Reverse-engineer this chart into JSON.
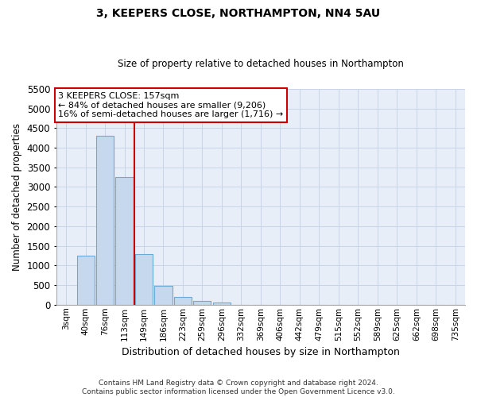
{
  "title": "3, KEEPERS CLOSE, NORTHAMPTON, NN4 5AU",
  "subtitle": "Size of property relative to detached houses in Northampton",
  "xlabel": "Distribution of detached houses by size in Northampton",
  "ylabel": "Number of detached properties",
  "footer_line1": "Contains HM Land Registry data © Crown copyright and database right 2024.",
  "footer_line2": "Contains public sector information licensed under the Open Government Licence v3.0.",
  "categories": [
    "3sqm",
    "40sqm",
    "76sqm",
    "113sqm",
    "149sqm",
    "186sqm",
    "223sqm",
    "259sqm",
    "296sqm",
    "332sqm",
    "369sqm",
    "406sqm",
    "442sqm",
    "479sqm",
    "515sqm",
    "552sqm",
    "589sqm",
    "625sqm",
    "662sqm",
    "698sqm",
    "735sqm"
  ],
  "bar_values": [
    0,
    1250,
    4300,
    3250,
    1280,
    480,
    195,
    100,
    55,
    0,
    0,
    0,
    0,
    0,
    0,
    0,
    0,
    0,
    0,
    0,
    0
  ],
  "bar_color": "#c5d8ee",
  "bar_edge_color": "#6aaad4",
  "ylim": [
    0,
    5500
  ],
  "yticks": [
    0,
    500,
    1000,
    1500,
    2000,
    2500,
    3000,
    3500,
    4000,
    4500,
    5000,
    5500
  ],
  "prop_line_index": 3.5,
  "annotation_title": "3 KEEPERS CLOSE: 157sqm",
  "annotation_line2": "← 84% of detached houses are smaller (9,206)",
  "annotation_line3": "16% of semi-detached houses are larger (1,716) →",
  "annotation_box_color": "#ffffff",
  "annotation_border_color": "#cc0000",
  "grid_color": "#c8d4e8",
  "background_color": "#e8eef8"
}
